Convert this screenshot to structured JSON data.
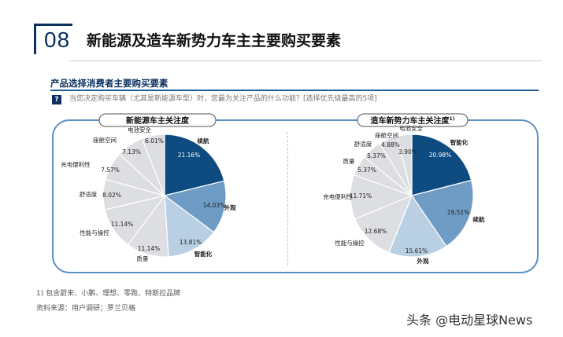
{
  "header": {
    "number": "08",
    "title": "新能源及造车新势力车主主要购买要素"
  },
  "section": {
    "subtitle": "产品选择消费者主要购买要素",
    "question_icon": "?",
    "question": "当您决定购买车辆（尤其是新能源车型）时，您最为关注产品的什么功能？[选择优先级最高的5项]"
  },
  "colors": {
    "dark_blue": "#0d4b80",
    "mid_blue": "#6f9cc4",
    "light_blue": "#b9d0e4",
    "gray": "#dcdee1",
    "panel_border": "#5b8fc6"
  },
  "chart_data": [
    {
      "type": "pie",
      "title": "新能源车主关注度",
      "categories": [
        "续航",
        "外观",
        "智能化",
        "质量",
        "性能与操控",
        "舒适度",
        "充电便利性",
        "座舱空间",
        "电池安全"
      ],
      "values": [
        21.16,
        14.03,
        13.81,
        11.14,
        11.14,
        8.02,
        7.57,
        7.13,
        6.01
      ],
      "value_labels": [
        "21.16%",
        "14.03%",
        "13.81%",
        "11.14%",
        "11.14%",
        "8.02%",
        "7.57%",
        "7.13%",
        "6.01%"
      ],
      "start_angle_deg": 0,
      "direction": "clockwise"
    },
    {
      "type": "pie",
      "title": "造车新势力车主关注度",
      "title_superscript": "1)",
      "categories": [
        "智能化",
        "续航",
        "外观",
        "性能与操控",
        "充电便利性",
        "质量",
        "舒适度",
        "座舱空间",
        "电池安全"
      ],
      "values": [
        20.98,
        19.51,
        15.61,
        12.68,
        11.71,
        5.37,
        5.37,
        4.88,
        3.9
      ],
      "value_labels": [
        "20.98%",
        "19.51%",
        "15.61%",
        "12.68%",
        "11.71%",
        "5.37%",
        "5.37%",
        "4.88%",
        "3.90%"
      ],
      "start_angle_deg": 0,
      "direction": "clockwise"
    }
  ],
  "footer": {
    "footnote": "1) 包含蔚来、小鹏、理想、零跑、特斯拉品牌",
    "source": "资料来源：用户调研；罗兰贝格",
    "watermark": "头条 @电动星球News"
  }
}
